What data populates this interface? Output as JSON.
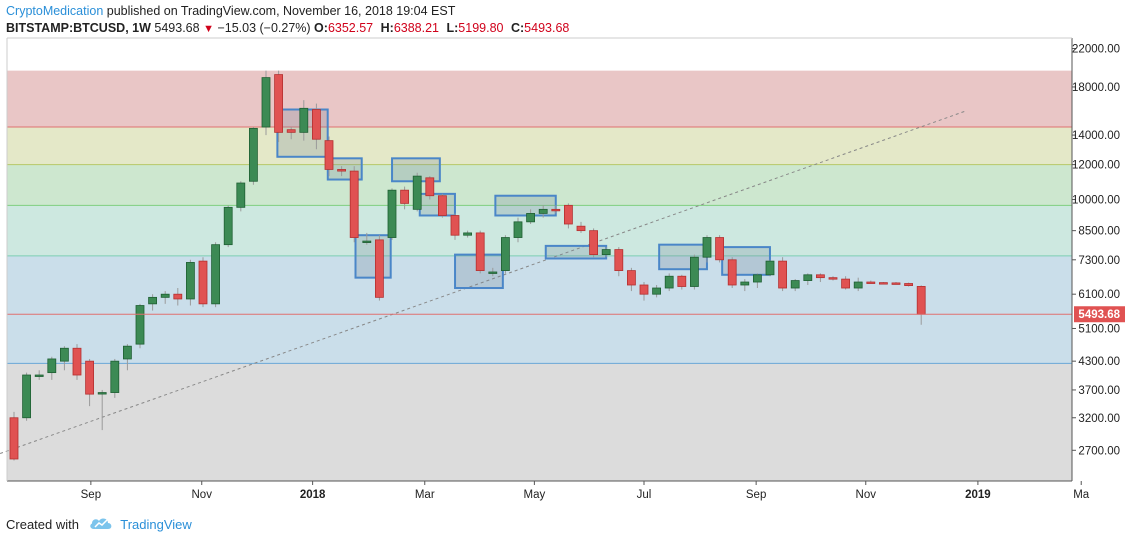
{
  "header": {
    "publisher": "CryptoMedication",
    "published_text": "published on TradingView.com, November 16, 2018 19:04 EST",
    "symbol": "BITSTAMP:BTCUSD, 1W",
    "last": "5493.68",
    "change": "−15.03 (−0.27%)",
    "open_label": "O:",
    "open": "6352.57",
    "high_label": "H:",
    "high": "6388.21",
    "low_label": "L:",
    "low": "5199.80",
    "close_label": "C:",
    "close": "5493.68"
  },
  "footer": {
    "created_with": "Created with",
    "brand": "TradingView"
  },
  "colors": {
    "up": "#3c8a54",
    "down": "#e05252",
    "box": "#4a86c8",
    "zones": [
      "#e9c6c6",
      "#e4e8c8",
      "#cde7cf",
      "#cde8e0",
      "#cadeea",
      "#dcdcdc"
    ],
    "zone_lines": [
      "#e07070",
      "#b7c968",
      "#7fcf7f",
      "#7ccfb3",
      "#6aa8d8"
    ]
  },
  "chart_data": {
    "type": "candlestick",
    "y_scale": "log",
    "ylim": [
      2300,
      23000
    ],
    "y_ticks": [
      22000,
      18000,
      14000,
      12000,
      10000,
      8500,
      7300,
      6100,
      5100,
      4300,
      3700,
      3200,
      2700
    ],
    "y_tick_labels": [
      "22000.00",
      "18000.00",
      "14000.00",
      "12000.00",
      "10000.00",
      "8500.00",
      "7300.00",
      "6100.00",
      "5100.00",
      "4300.00",
      "3700.00",
      "3200.00",
      "2700.00"
    ],
    "x_labels": [
      {
        "label": "Sep",
        "w": 6.1,
        "bold": false
      },
      {
        "label": "Nov",
        "w": 14.9,
        "bold": false
      },
      {
        "label": "2018",
        "w": 23.7,
        "bold": true
      },
      {
        "label": "Mar",
        "w": 32.6,
        "bold": false
      },
      {
        "label": "May",
        "w": 41.3,
        "bold": false
      },
      {
        "label": "Jul",
        "w": 50.0,
        "bold": false
      },
      {
        "label": "Sep",
        "w": 58.9,
        "bold": false
      },
      {
        "label": "Nov",
        "w": 67.6,
        "bold": false
      },
      {
        "label": "2019",
        "w": 76.5,
        "bold": true
      },
      {
        "label": "Ma",
        "w": 84.7,
        "bold": false
      }
    ],
    "candles": [
      [
        3200,
        2580,
        3300,
        2560
      ],
      [
        3200,
        4000,
        4050,
        3150
      ],
      [
        4000,
        4000,
        4100,
        3900
      ],
      [
        4050,
        4350,
        4400,
        3900
      ],
      [
        4300,
        4600,
        4650,
        4100
      ],
      [
        4600,
        4000,
        4700,
        3900
      ],
      [
        4300,
        3620,
        4350,
        3400
      ],
      [
        3650,
        3650,
        3700,
        3000
      ],
      [
        3650,
        4300,
        4350,
        3550
      ],
      [
        4350,
        4650,
        4700,
        4100
      ],
      [
        4700,
        5750,
        5800,
        4600
      ],
      [
        5800,
        6000,
        6100,
        5600
      ],
      [
        6000,
        6100,
        6200,
        5800
      ],
      [
        6100,
        5950,
        6300,
        5750
      ],
      [
        5950,
        7200,
        7300,
        5750
      ],
      [
        7250,
        5800,
        7400,
        5700
      ],
      [
        5800,
        7900,
        8000,
        5700
      ],
      [
        7900,
        9600,
        9700,
        7800
      ],
      [
        9600,
        10900,
        11000,
        9400
      ],
      [
        11000,
        14500,
        14600,
        10800
      ],
      [
        14600,
        18900,
        19600,
        14000
      ],
      [
        19200,
        14200,
        19600,
        13500
      ],
      [
        14400,
        14200,
        14600,
        13700
      ],
      [
        14200,
        16100,
        16800,
        13600
      ],
      [
        16000,
        13700,
        16500,
        13000
      ],
      [
        13600,
        11700,
        13900,
        11300
      ],
      [
        11700,
        11600,
        11900,
        11300
      ],
      [
        11600,
        8200,
        11900,
        8000
      ],
      [
        8000,
        8050,
        8400,
        7900
      ],
      [
        8100,
        6000,
        8300,
        5900
      ],
      [
        8200,
        10500,
        10600,
        8100
      ],
      [
        10500,
        9800,
        10700,
        9500
      ],
      [
        9500,
        11300,
        11500,
        9400
      ],
      [
        11200,
        10200,
        11300,
        10000
      ],
      [
        10200,
        9200,
        10300,
        9100
      ],
      [
        9200,
        8300,
        9300,
        8100
      ],
      [
        8300,
        8400,
        8500,
        8200
      ],
      [
        8400,
        6900,
        8500,
        6800
      ],
      [
        6800,
        6850,
        7000,
        6700
      ],
      [
        6900,
        8200,
        8300,
        6800
      ],
      [
        8200,
        8900,
        9100,
        8000
      ],
      [
        8900,
        9300,
        9500,
        8800
      ],
      [
        9300,
        9500,
        9700,
        9100
      ],
      [
        9500,
        9450,
        9700,
        9300
      ],
      [
        9700,
        8800,
        9800,
        8600
      ],
      [
        8700,
        8500,
        8900,
        8400
      ],
      [
        8500,
        7500,
        8600,
        7400
      ],
      [
        7500,
        7700,
        7800,
        7400
      ],
      [
        7700,
        6900,
        7800,
        6700
      ],
      [
        6900,
        6400,
        7000,
        6200
      ],
      [
        6400,
        6100,
        6500,
        5900
      ],
      [
        6100,
        6300,
        6400,
        6000
      ],
      [
        6300,
        6700,
        6800,
        6200
      ],
      [
        6700,
        6350,
        6750,
        6250
      ],
      [
        6350,
        7400,
        7500,
        6250
      ],
      [
        7400,
        8200,
        8300,
        7200
      ],
      [
        8200,
        7300,
        8300,
        7200
      ],
      [
        7300,
        6400,
        7400,
        6300
      ],
      [
        6400,
        6500,
        6600,
        6200
      ],
      [
        6500,
        6750,
        6800,
        6300
      ],
      [
        6750,
        7250,
        7300,
        6700
      ],
      [
        7250,
        6300,
        7400,
        6200
      ],
      [
        6300,
        6550,
        6600,
        6200
      ],
      [
        6550,
        6750,
        6800,
        6400
      ],
      [
        6750,
        6650,
        6800,
        6500
      ],
      [
        6650,
        6630,
        6700,
        6550
      ],
      [
        6600,
        6300,
        6700,
        6250
      ],
      [
        6300,
        6500,
        6650,
        6200
      ],
      [
        6500,
        6480,
        6550,
        6450
      ],
      [
        6480,
        6470,
        6500,
        6430
      ],
      [
        6470,
        6460,
        6500,
        6420
      ],
      [
        6450,
        6380,
        6480,
        6350
      ],
      [
        6352.57,
        5493.68,
        6388.21,
        5199.8
      ]
    ],
    "fib_levels": [
      19600,
      14600,
      12000,
      9700,
      7450,
      4250
    ],
    "trendline": [
      [
        2600,
        -2
      ],
      [
        15900,
        75.6
      ]
    ],
    "boxes": [
      {
        "i0": 21.3,
        "i1": 24.5,
        "y0": 16000,
        "y1": 12500
      },
      {
        "i0": 25.3,
        "i1": 27.2,
        "y0": 12400,
        "y1": 11100
      },
      {
        "i0": 27.5,
        "i1": 29.5,
        "y0": 8300,
        "y1": 6650
      },
      {
        "i0": 30.4,
        "i1": 33.4,
        "y0": 12400,
        "y1": 11000
      },
      {
        "i0": 32.6,
        "i1": 34.6,
        "y0": 10300,
        "y1": 9200
      },
      {
        "i0": 35.4,
        "i1": 38.4,
        "y0": 7500,
        "y1": 6300
      },
      {
        "i0": 38.6,
        "i1": 42.6,
        "y0": 10200,
        "y1": 9200
      },
      {
        "i0": 42.6,
        "i1": 46.6,
        "y0": 7850,
        "y1": 7350
      },
      {
        "i0": 51.6,
        "i1": 54.6,
        "y0": 7900,
        "y1": 6950
      },
      {
        "i0": 56.6,
        "i1": 59.6,
        "y0": 7800,
        "y1": 6750
      }
    ],
    "last_price_label": "5493.68"
  }
}
